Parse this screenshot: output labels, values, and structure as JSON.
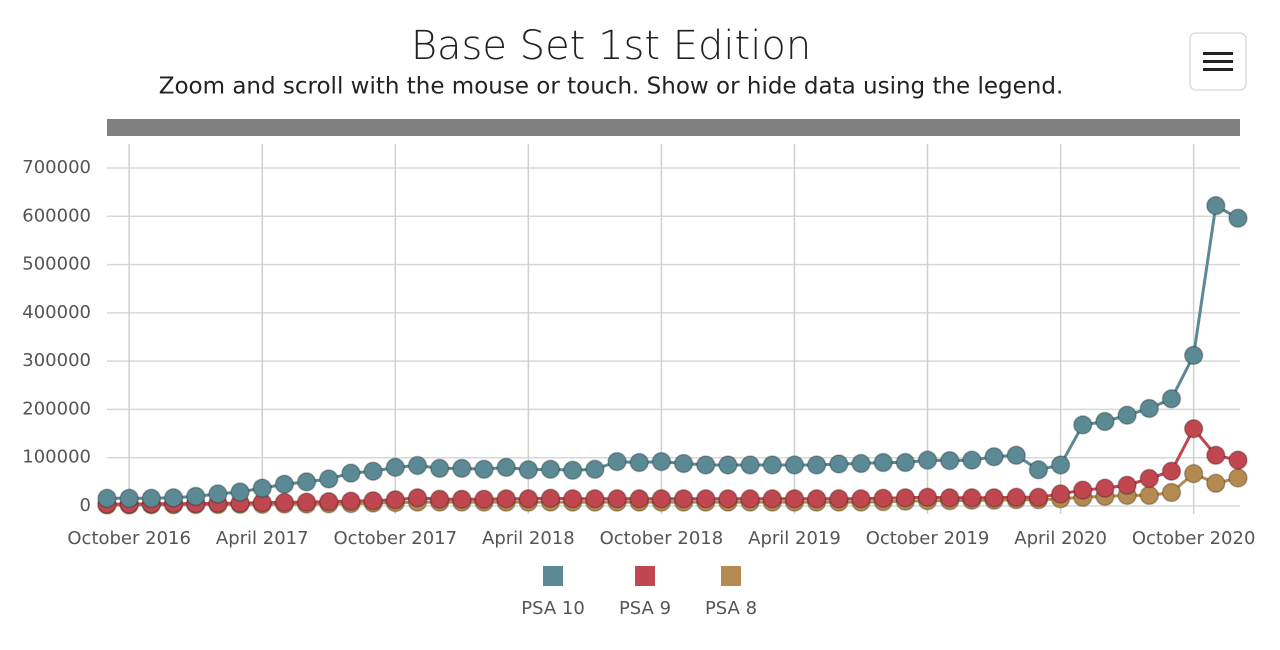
{
  "chart_data": {
    "type": "line",
    "title": "Base Set 1st Edition",
    "subtitle": "Zoom and scroll with the mouse or touch. Show or hide data using the legend.",
    "x": [
      "2016-09",
      "2016-10",
      "2016-11",
      "2016-12",
      "2017-01",
      "2017-02",
      "2017-03",
      "2017-04",
      "2017-05",
      "2017-06",
      "2017-07",
      "2017-08",
      "2017-09",
      "2017-10",
      "2017-11",
      "2017-12",
      "2018-01",
      "2018-02",
      "2018-03",
      "2018-04",
      "2018-05",
      "2018-06",
      "2018-07",
      "2018-08",
      "2018-09",
      "2018-10",
      "2018-11",
      "2018-12",
      "2019-01",
      "2019-02",
      "2019-03",
      "2019-04",
      "2019-05",
      "2019-06",
      "2019-07",
      "2019-08",
      "2019-09",
      "2019-10",
      "2019-11",
      "2019-12",
      "2020-01",
      "2020-02",
      "2020-03",
      "2020-04",
      "2020-05",
      "2020-06",
      "2020-07",
      "2020-08",
      "2020-09",
      "2020-10",
      "2020-11",
      "2020-12"
    ],
    "xlim": [
      "2016-09",
      "2020-12"
    ],
    "xticks": [
      {
        "value": "2016-10",
        "label": "October 2016"
      },
      {
        "value": "2017-04",
        "label": "April 2017"
      },
      {
        "value": "2017-10",
        "label": "October 2017"
      },
      {
        "value": "2018-04",
        "label": "April 2018"
      },
      {
        "value": "2018-10",
        "label": "October 2018"
      },
      {
        "value": "2019-04",
        "label": "April 2019"
      },
      {
        "value": "2019-10",
        "label": "October 2019"
      },
      {
        "value": "2020-04",
        "label": "April 2020"
      },
      {
        "value": "2020-10",
        "label": "October 2020"
      }
    ],
    "ylim": [
      0,
      700000
    ],
    "yticks": [
      0,
      100000,
      200000,
      300000,
      400000,
      500000,
      600000,
      700000
    ],
    "grid": true,
    "legend": "bottom",
    "series": [
      {
        "name": "PSA 10",
        "color": "#5b8a94",
        "values": [
          16000,
          16000,
          16000,
          17000,
          20000,
          25000,
          29000,
          37000,
          45000,
          50000,
          56000,
          68000,
          72000,
          80000,
          84000,
          78000,
          78000,
          76000,
          80000,
          75000,
          76000,
          74000,
          76000,
          92000,
          90000,
          92000,
          88000,
          85000,
          85000,
          85000,
          85000,
          85000,
          85000,
          87000,
          88000,
          90000,
          90000,
          95000,
          94000,
          95000,
          102000,
          105000,
          75000,
          85000,
          168000,
          175000,
          188000,
          202000,
          222000,
          312000,
          622000,
          596000
        ]
      },
      {
        "name": "PSA 9",
        "color": "#c0464f",
        "values": [
          4000,
          4000,
          4500,
          5000,
          5000,
          5500,
          6000,
          7000,
          7500,
          8000,
          9000,
          10000,
          11000,
          13000,
          17000,
          14000,
          14000,
          14000,
          15000,
          15000,
          16000,
          15000,
          15000,
          15000,
          15000,
          15000,
          15000,
          15000,
          15000,
          15000,
          15000,
          15000,
          15000,
          15000,
          15000,
          16000,
          17000,
          18000,
          17000,
          17000,
          17000,
          18000,
          18000,
          25000,
          33000,
          37000,
          43000,
          57000,
          72000,
          160000,
          105000,
          95000
        ]
      },
      {
        "name": "PSA 8",
        "color": "#b48a50",
        "values": [
          2000,
          2000,
          2500,
          2500,
          3000,
          3000,
          3500,
          3500,
          4000,
          4000,
          4500,
          5000,
          6000,
          7000,
          8000,
          8000,
          8000,
          8000,
          8000,
          8000,
          8000,
          8000,
          8000,
          8000,
          8000,
          8000,
          8000,
          8000,
          8000,
          8000,
          8000,
          8000,
          8000,
          8000,
          8000,
          9000,
          10000,
          11000,
          11000,
          12000,
          12000,
          13000,
          13000,
          15000,
          18000,
          20000,
          22000,
          22000,
          28000,
          67000,
          47000,
          58000
        ]
      }
    ]
  }
}
